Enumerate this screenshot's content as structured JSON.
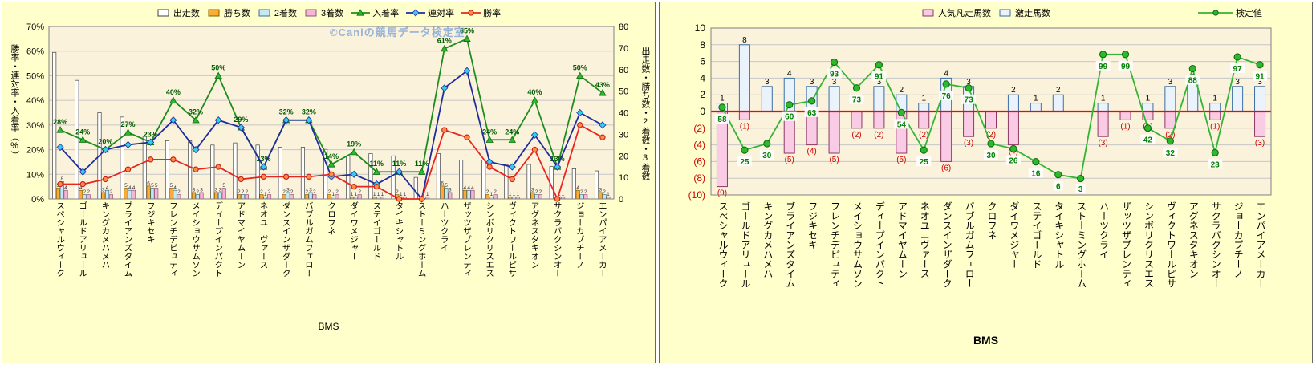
{
  "watermark": "©Caniの競馬データ検定室",
  "left_chart": {
    "x_axis_title": "BMS",
    "y_axis_left_title": "勝率・連対率・入着率（%）",
    "y_axis_right_title": "出走数・勝ち数・2着数・3着数",
    "y_left_ticks": [
      "0%",
      "10%",
      "20%",
      "30%",
      "40%",
      "50%",
      "60%",
      "70%"
    ],
    "y_right_ticks": [
      "0",
      "10",
      "20",
      "30",
      "40",
      "50",
      "60",
      "70",
      "80"
    ],
    "legend": [
      "出走数",
      "勝ち数",
      "2着数",
      "3着数",
      "入着率",
      "連対率",
      "勝率"
    ]
  },
  "right_chart": {
    "x_axis_title": "BMS",
    "y_ticks_top_to_bottom": [
      "10",
      "8",
      "6",
      "4",
      "2",
      "0",
      "(2)",
      "(4)",
      "(6)",
      "(8)",
      "(10)"
    ],
    "legend": [
      "人気凡走馬数",
      "激走馬数",
      "検定値"
    ]
  },
  "chart_data": [
    {
      "type": "bar",
      "subtype": "bar-line-combo",
      "title": "",
      "xlabel": "BMS",
      "ylabel_left": "勝率・連対率・入着率（%）",
      "ylabel_right": "出走数・勝ち数・2着数・3着数",
      "ylim_left_percent": [
        0,
        70
      ],
      "ylim_right_count": [
        0,
        80
      ],
      "grid": true,
      "legend_position": "top",
      "categories": [
        "スペシャルウィーク",
        "ゴールドアリュール",
        "キングカメハメハ",
        "ブライアンズタイム",
        "フジキセキ",
        "フレンチデピュティ",
        "メイショウサムソン",
        "ディープインパクト",
        "アドマイヤムーン",
        "ネオユニヴァース",
        "ダンスインザダーク",
        "バブルガムフェロー",
        "クロフネ",
        "ダイワメジャー",
        "ステイゴールド",
        "タイキシャトル",
        "ストーミングホーム",
        "ハーツクライ",
        "ザッツザプレンティ",
        "シンボリクリスエス",
        "ヴィクトワールピサ",
        "アグネスタキオン",
        "サクラバクシンオー",
        "ジョーカプチーノ",
        "エンパイアメーカー"
      ],
      "bar_series": [
        {
          "name": "出走数",
          "key": "runs",
          "axis": "right",
          "color": "#FFFFFF",
          "values": [
            68,
            55,
            40,
            38,
            29,
            27,
            27,
            25,
            26,
            25,
            24,
            24,
            23,
            20,
            21,
            20,
            10,
            21,
            18,
            18,
            16,
            16,
            15,
            14,
            13
          ]
        },
        {
          "name": "勝ち数",
          "key": "wins",
          "axis": "right",
          "color": "#FFAA33",
          "values": [
            5,
            4,
            3,
            5,
            6,
            5,
            3,
            3,
            2,
            2,
            2,
            2,
            2,
            1,
            1,
            2,
            0,
            6,
            4,
            2,
            1,
            3,
            0,
            4,
            3
          ]
        },
        {
          "name": "2着数",
          "key": "seconds",
          "axis": "right",
          "color": "#C5E8F5",
          "values": [
            8,
            2,
            4,
            4,
            5,
            4,
            2,
            3,
            2,
            1,
            3,
            3,
            1,
            1,
            1,
            1,
            0,
            5,
            4,
            1,
            1,
            2,
            1,
            2,
            2
          ]
        },
        {
          "name": "3着数",
          "key": "thirds",
          "axis": "right",
          "color": "#F5B5D5",
          "values": [
            4,
            2,
            2,
            4,
            5,
            2,
            3,
            5,
            2,
            2,
            2,
            2,
            2,
            2,
            1,
            1,
            1,
            3,
            4,
            2,
            1,
            2,
            1,
            2,
            1
          ]
        }
      ],
      "line_series": [
        {
          "name": "入着率",
          "key": "place-rate",
          "axis": "left",
          "unit": "%",
          "color": "#1E8C1E",
          "marker": "triangle",
          "data_labels": true,
          "values": [
            28,
            24,
            20,
            27,
            23,
            40,
            32,
            50,
            29,
            13,
            32,
            32,
            14,
            19,
            11,
            11,
            11,
            61,
            65,
            24,
            24,
            40,
            13,
            50,
            43
          ]
        },
        {
          "name": "連対率",
          "key": "quinella-rate",
          "axis": "left",
          "unit": "%",
          "color": "#1F2D9C",
          "marker": "diamond",
          "data_labels": false,
          "values": [
            21,
            11,
            20,
            22,
            23,
            32,
            20,
            32,
            29,
            13,
            32,
            32,
            9,
            10,
            6,
            11,
            0,
            45,
            52,
            15,
            13,
            26,
            13,
            35,
            30
          ]
        },
        {
          "name": "勝率",
          "key": "win-rate",
          "axis": "left",
          "unit": "%",
          "color": "#E8251F",
          "marker": "circle",
          "data_labels": false,
          "values": [
            6,
            6,
            8,
            12,
            16,
            16,
            12,
            13,
            8,
            9,
            9,
            9,
            10,
            5,
            5,
            0,
            0,
            28,
            25,
            13,
            8,
            20,
            0,
            30,
            25
          ]
        }
      ]
    },
    {
      "type": "bar",
      "subtype": "bar-line-combo",
      "title": "",
      "xlabel": "BMS",
      "ylim": [
        -10,
        10
      ],
      "ytick_step": 2,
      "negative_tick_format": "parentheses-red",
      "zero_line_color": "#FF0000",
      "grid": true,
      "categories": [
        "スペシャルウィーク",
        "ゴールドアリュール",
        "キングカメハメハ",
        "ブライアンズタイム",
        "フジキセキ",
        "フレンチデピュティ",
        "メイショウサムソン",
        "ディープインパクト",
        "アドマイヤムーン",
        "ネオユニヴァース",
        "ダンスインザダーク",
        "バブルガムフェロー",
        "クロフネ",
        "ダイワメジャー",
        "ステイゴールド",
        "タイキシャトル",
        "ストーミングホーム",
        "ハーツクライ",
        "ザッツザプレンティ",
        "シンボリクリスエス",
        "ヴィクトワールピサ",
        "アグネスタキオン",
        "サクラバクシンオー",
        "ジョーカプチーノ",
        "エンパイアメーカー"
      ],
      "bar_series": [
        {
          "name": "激走馬数",
          "key": "hot-runs",
          "direction": "up",
          "color": "#EAF3FC",
          "values": [
            1,
            8,
            3,
            4,
            3,
            3,
            0,
            3,
            2,
            1,
            4,
            3,
            0,
            2,
            1,
            2,
            0,
            1,
            0,
            1,
            3,
            4,
            1,
            3,
            3
          ]
        },
        {
          "name": "人気凡走馬数",
          "key": "flop-runs",
          "direction": "down",
          "color": "#F9CBE4",
          "values": [
            9,
            1,
            0,
            5,
            4,
            5,
            2,
            2,
            5,
            2,
            6,
            3,
            2,
            4,
            0,
            0,
            0,
            3,
            1,
            1,
            2,
            0,
            1,
            0,
            3
          ]
        }
      ],
      "line_series": [
        {
          "name": "検定値",
          "key": "test-value",
          "color": "#2EB82E",
          "marker": "circle",
          "scale": [
            0,
            100
          ],
          "data_labels": true,
          "values": [
            58,
            25,
            30,
            60,
            63,
            93,
            73,
            91,
            54,
            25,
            76,
            73,
            30,
            26,
            16,
            6,
            3,
            99,
            99,
            42,
            32,
            88,
            23,
            97,
            91
          ]
        }
      ]
    }
  ]
}
